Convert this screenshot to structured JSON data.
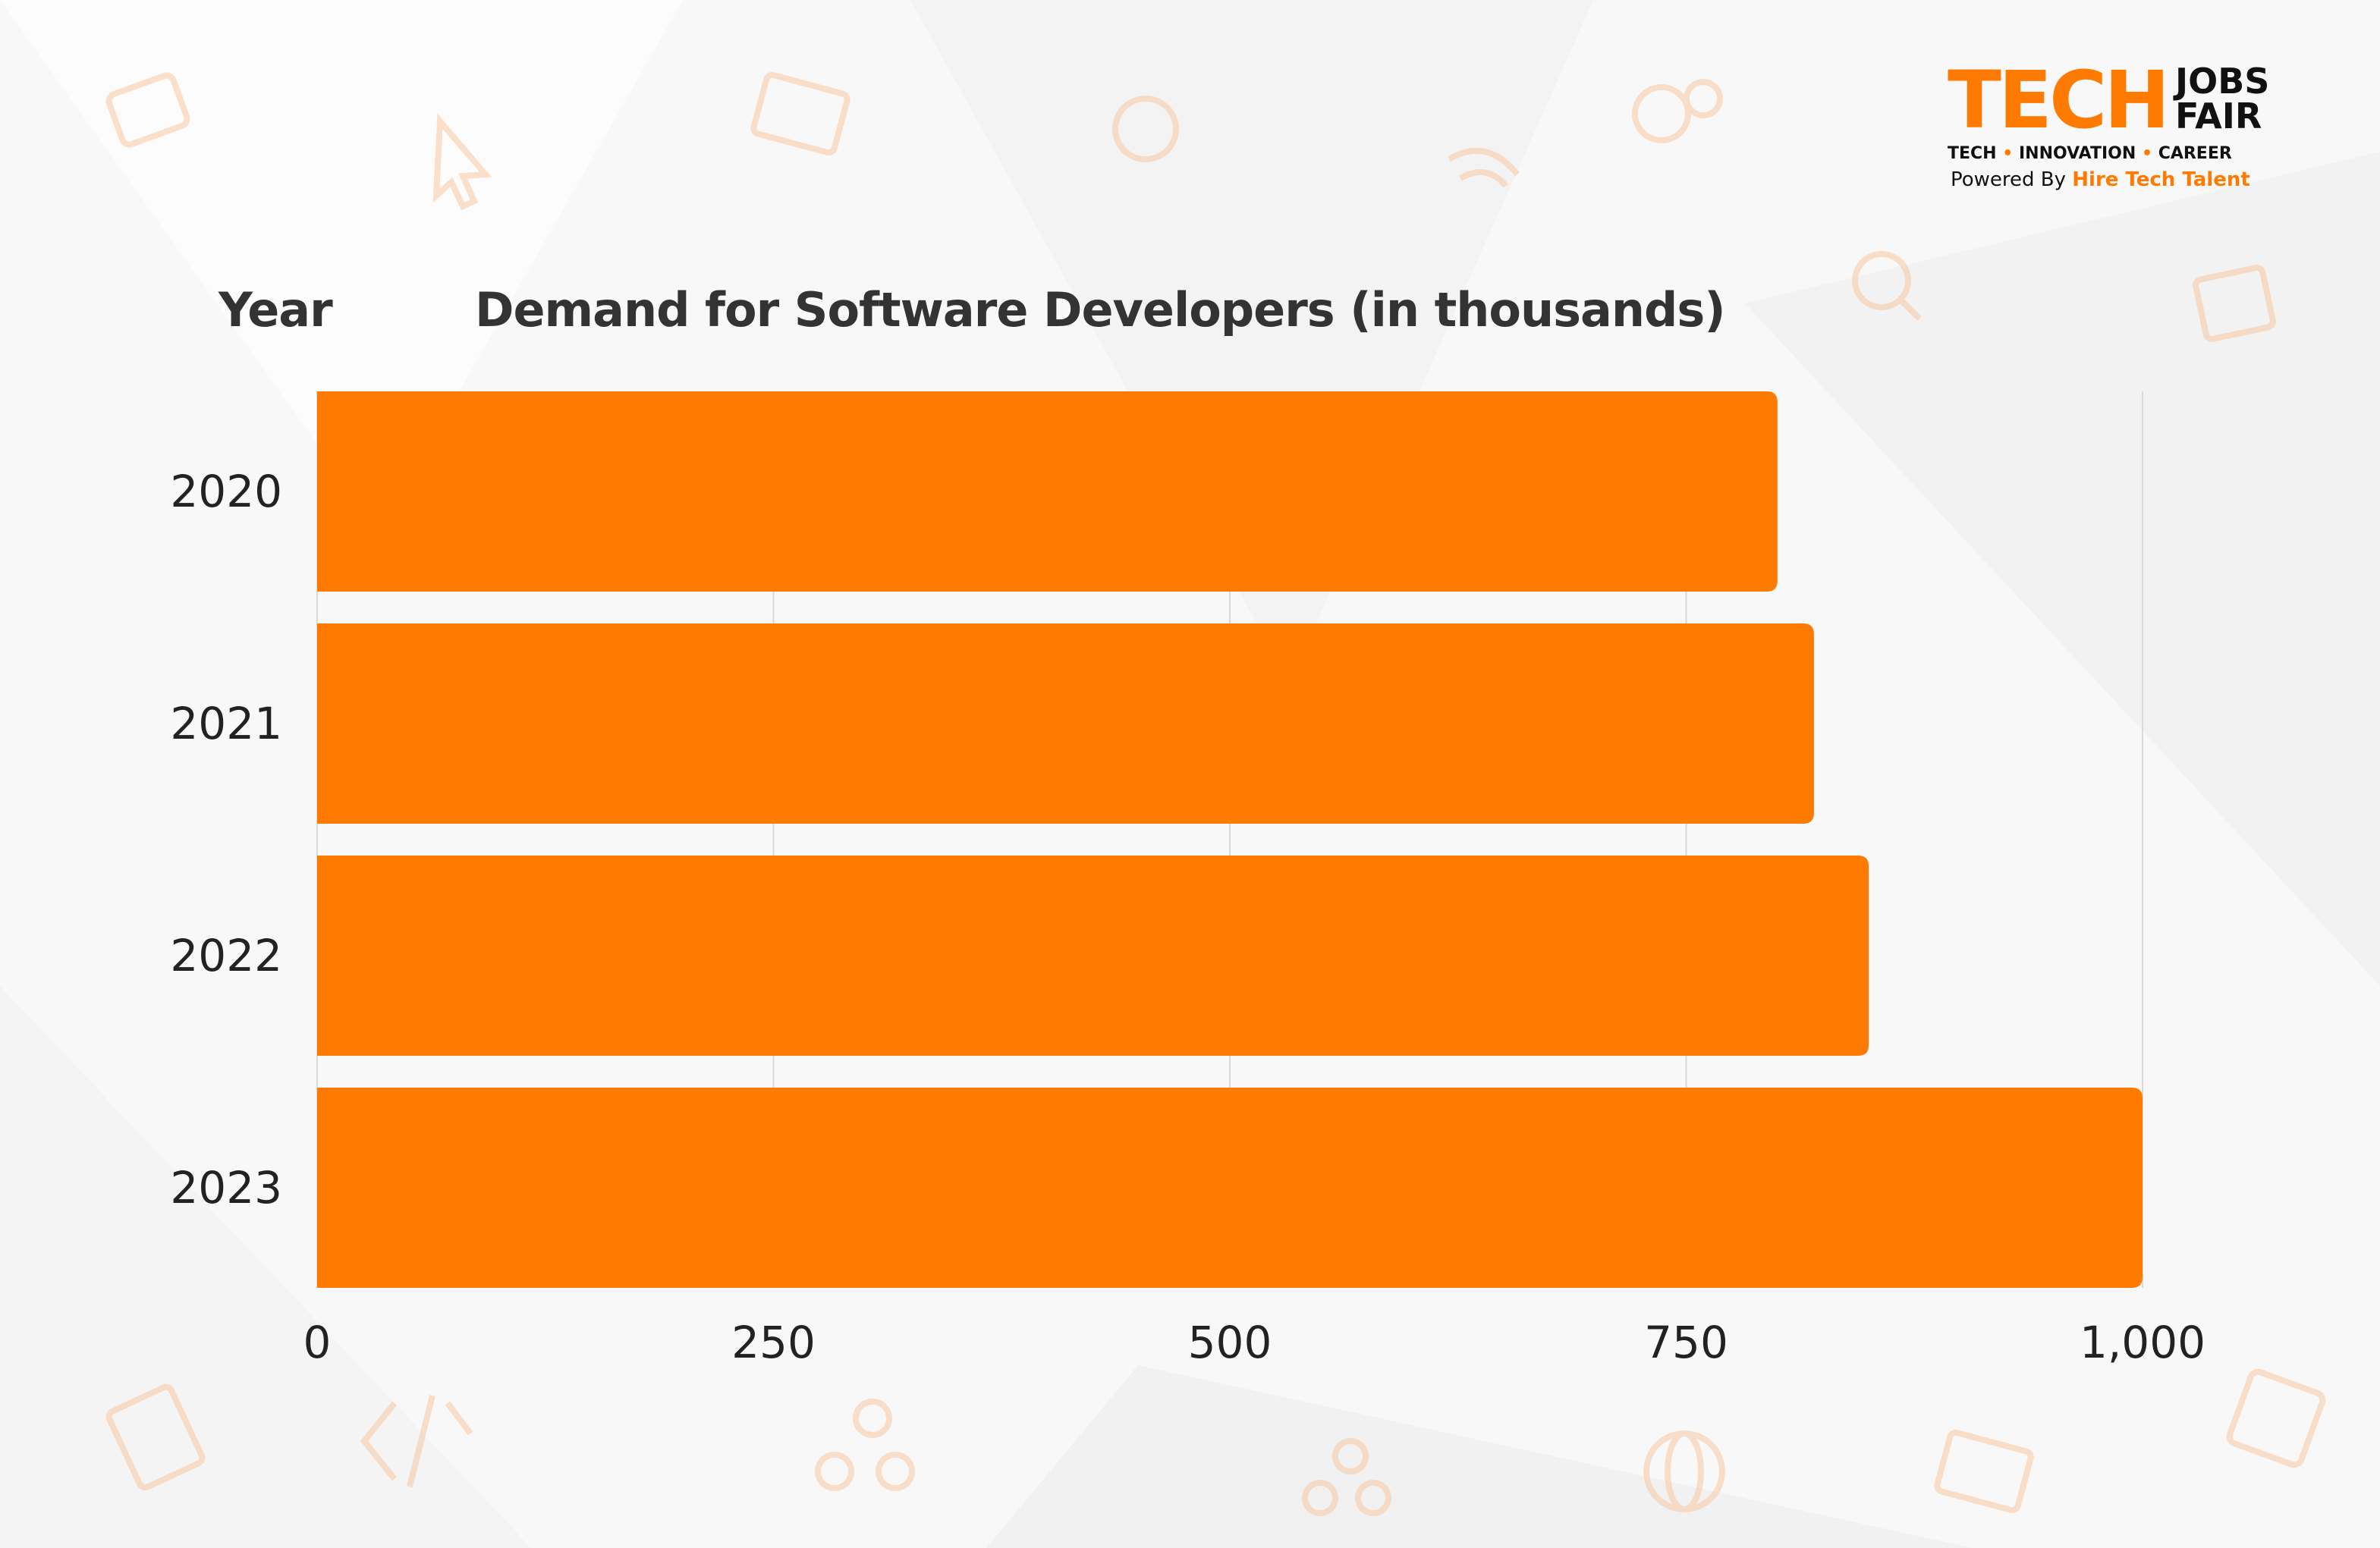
{
  "logo": {
    "tech": "TECH",
    "jobs": "JOBS",
    "fair": "FAIR",
    "tagline": [
      "TECH",
      "INNOVATION",
      "CAREER"
    ],
    "powered_prefix": "Powered By",
    "powered_brand": "Hire Tech Talent"
  },
  "background_icons": [
    "briefcase-icon",
    "cursor-click-icon",
    "laptop-icon",
    "location-pin-icon",
    "gears-icon",
    "wifi-icon",
    "person-search-icon",
    "job-card-icon",
    "clipboard-icon",
    "code-icon",
    "share-icon",
    "globe-icon",
    "chip-icon"
  ],
  "colors": {
    "bar": "#ff7a00",
    "text": "#222222",
    "grid": "#d9d9d9",
    "accent": "#ff7a00"
  },
  "chart_data": {
    "type": "bar",
    "orientation": "horizontal",
    "category_header": "Year",
    "value_header": "Demand for Software Developers (in thousands)",
    "categories": [
      "2020",
      "2021",
      "2022",
      "2023"
    ],
    "values": [
      800,
      820,
      850,
      1000
    ],
    "xlim": [
      0,
      1000
    ],
    "xticks": [
      0,
      250,
      500,
      750,
      1000
    ],
    "xtick_labels": [
      "0",
      "250",
      "500",
      "750",
      "1,000"
    ],
    "grid": true,
    "legend": "none"
  }
}
